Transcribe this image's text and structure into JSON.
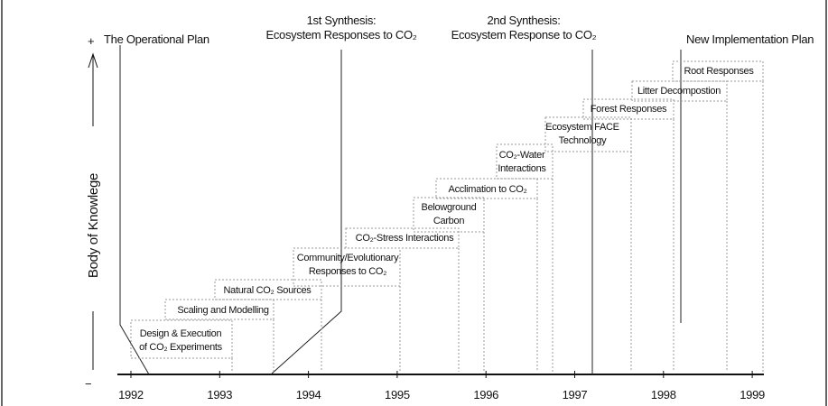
{
  "y_axis": {
    "label": "Body of Knowlege",
    "plus": "+",
    "minus": "−"
  },
  "milestones": [
    {
      "lines": [
        "The Operational Plan"
      ]
    },
    {
      "lines": [
        "1st Synthesis:",
        "Ecosystem Responses to CO₂"
      ]
    },
    {
      "lines": [
        "2nd Synthesis:",
        "Ecosystem Response to CO₂"
      ]
    },
    {
      "lines": [
        "New Implementation Plan"
      ]
    }
  ],
  "steps": [
    {
      "lines": [
        "Design & Execution",
        "of CO₂ Experiments"
      ]
    },
    {
      "lines": [
        "Scaling and Modelling"
      ]
    },
    {
      "lines": [
        "Natural CO₂ Sources"
      ]
    },
    {
      "lines": [
        "Community/Evolutionary",
        "Responses to CO₂"
      ]
    },
    {
      "lines": [
        "CO₂-Stress Interactions"
      ]
    },
    {
      "lines": [
        "Belowground",
        "Carbon"
      ]
    },
    {
      "lines": [
        "Acclimation to CO₂"
      ]
    },
    {
      "lines": [
        "CO₂-Water",
        "Interactions"
      ]
    },
    {
      "lines": [
        "Ecosystem FACE",
        "Technology"
      ]
    },
    {
      "lines": [
        "Forest Responses"
      ]
    },
    {
      "lines": [
        "Litter Decompostion"
      ]
    },
    {
      "lines": [
        "Root Responses"
      ]
    }
  ],
  "years": [
    "1992",
    "1993",
    "1994",
    "1995",
    "1996",
    "1997",
    "1998",
    "1999"
  ]
}
